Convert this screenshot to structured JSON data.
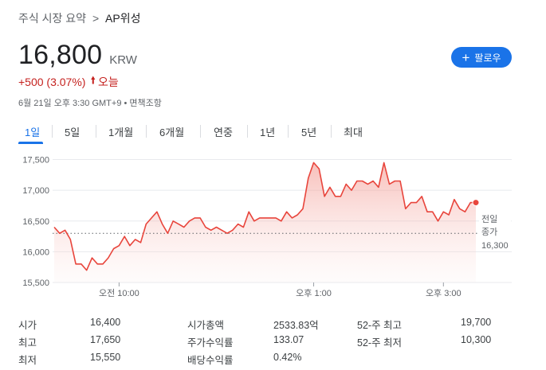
{
  "breadcrumb": {
    "parent": "주식 시장 요약",
    "separator": ">",
    "current": "AP위성"
  },
  "quote": {
    "price": "16,800",
    "currency": "KRW",
    "change": "+500 (3.07%)",
    "period": "오늘",
    "meta": "6월 21일 오후 3:30 GMT+9 • 면책조항"
  },
  "follow_button": {
    "label": "팔로우"
  },
  "tabs": [
    {
      "label": "1일",
      "active": true
    },
    {
      "label": "5일",
      "active": false
    },
    {
      "label": "1개월",
      "active": false
    },
    {
      "label": "6개월",
      "active": false
    },
    {
      "label": "연중",
      "active": false
    },
    {
      "label": "1년",
      "active": false
    },
    {
      "label": "5년",
      "active": false
    },
    {
      "label": "최대",
      "active": false
    }
  ],
  "colors": {
    "line": "#e8453c",
    "fill": "#f8c9c6",
    "accent": "#1a73e8",
    "negative": "#c5221f"
  },
  "chart_data": {
    "type": "area",
    "y_ticks": [
      "17,500",
      "17,000",
      "16,500",
      "16,000",
      "15,500"
    ],
    "y_tick_values": [
      17500,
      17000,
      16500,
      16000,
      15500
    ],
    "ylim": [
      15500,
      17650
    ],
    "x_ticks": [
      "오전 10:00",
      "오후 1:00",
      "오후 3:00"
    ],
    "x_tick_minutes": [
      60,
      240,
      360
    ],
    "x_range_minutes": [
      0,
      390
    ],
    "previous_close_label": "전일 종가",
    "previous_close_value_label": "16,300",
    "previous_close": 16300,
    "grid": true,
    "series": [
      {
        "points": [
          [
            0,
            16400
          ],
          [
            5,
            16300
          ],
          [
            10,
            16350
          ],
          [
            15,
            16200
          ],
          [
            20,
            15800
          ],
          [
            25,
            15800
          ],
          [
            30,
            15700
          ],
          [
            35,
            15900
          ],
          [
            40,
            15800
          ],
          [
            45,
            15800
          ],
          [
            50,
            15900
          ],
          [
            55,
            16050
          ],
          [
            60,
            16100
          ],
          [
            65,
            16250
          ],
          [
            70,
            16100
          ],
          [
            75,
            16200
          ],
          [
            80,
            16150
          ],
          [
            85,
            16450
          ],
          [
            90,
            16550
          ],
          [
            95,
            16650
          ],
          [
            100,
            16450
          ],
          [
            105,
            16300
          ],
          [
            110,
            16500
          ],
          [
            115,
            16450
          ],
          [
            120,
            16400
          ],
          [
            125,
            16500
          ],
          [
            130,
            16550
          ],
          [
            135,
            16550
          ],
          [
            140,
            16400
          ],
          [
            145,
            16350
          ],
          [
            150,
            16400
          ],
          [
            155,
            16350
          ],
          [
            160,
            16300
          ],
          [
            165,
            16350
          ],
          [
            170,
            16450
          ],
          [
            175,
            16400
          ],
          [
            180,
            16650
          ],
          [
            185,
            16500
          ],
          [
            190,
            16550
          ],
          [
            195,
            16550
          ],
          [
            200,
            16550
          ],
          [
            205,
            16550
          ],
          [
            210,
            16500
          ],
          [
            215,
            16650
          ],
          [
            220,
            16550
          ],
          [
            225,
            16600
          ],
          [
            230,
            16700
          ],
          [
            235,
            17200
          ],
          [
            240,
            17450
          ],
          [
            245,
            17350
          ],
          [
            250,
            16900
          ],
          [
            255,
            17050
          ],
          [
            260,
            16900
          ],
          [
            265,
            16900
          ],
          [
            270,
            17100
          ],
          [
            275,
            17000
          ],
          [
            280,
            17150
          ],
          [
            285,
            17150
          ],
          [
            290,
            17100
          ],
          [
            295,
            17150
          ],
          [
            300,
            17050
          ],
          [
            305,
            17450
          ],
          [
            310,
            17100
          ],
          [
            315,
            17150
          ],
          [
            320,
            17150
          ],
          [
            325,
            16700
          ],
          [
            330,
            16800
          ],
          [
            335,
            16800
          ],
          [
            340,
            16900
          ],
          [
            345,
            16650
          ],
          [
            350,
            16650
          ],
          [
            355,
            16500
          ],
          [
            360,
            16650
          ],
          [
            365,
            16600
          ],
          [
            370,
            16850
          ],
          [
            375,
            16700
          ],
          [
            380,
            16650
          ],
          [
            385,
            16800
          ],
          [
            390,
            16800
          ]
        ]
      }
    ]
  },
  "stats": [
    {
      "label": "시가",
      "value": "16,400"
    },
    {
      "label": "최고",
      "value": "17,650"
    },
    {
      "label": "최저",
      "value": "15,550"
    },
    {
      "label": "시가총액",
      "value": "2533.83억"
    },
    {
      "label": "주가수익률",
      "value": "133.07"
    },
    {
      "label": "배당수익률",
      "value": "0.42%"
    },
    {
      "label": "52-주 최고",
      "value": "19,700"
    },
    {
      "label": "52-주 최저",
      "value": "10,300"
    }
  ]
}
